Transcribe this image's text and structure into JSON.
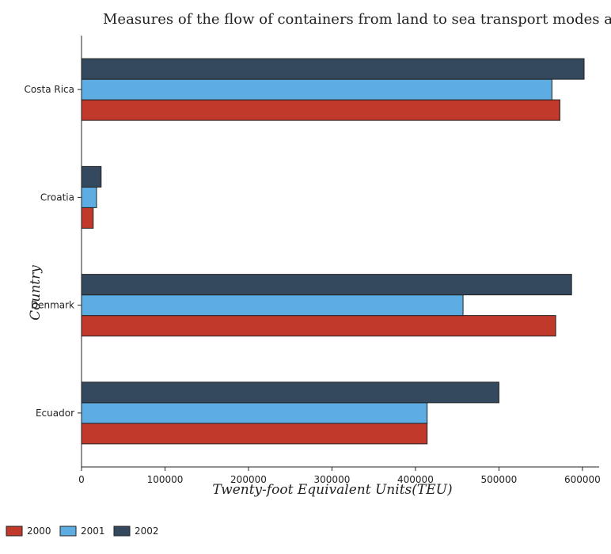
{
  "chart_data": {
    "type": "bar",
    "orientation": "horizontal",
    "title": "Measures of the flow of containers from land to sea transport modes and vice versa",
    "xlabel": "Twenty-foot Equivalent Units(TEU)",
    "ylabel": "Country",
    "categories": [
      "Costa Rica",
      "Croatia",
      "Denmark",
      "Ecuador"
    ],
    "series": [
      {
        "name": "2000",
        "color": "#c0392b",
        "values": [
          573000,
          14000,
          568000,
          414000
        ]
      },
      {
        "name": "2001",
        "color": "#5dade2",
        "values": [
          563500,
          18000,
          457000,
          414000
        ]
      },
      {
        "name": "2002",
        "color": "#34495e",
        "values": [
          602000,
          23500,
          587000,
          500000
        ]
      }
    ],
    "xlim": [
      0,
      620000
    ],
    "xticks": [
      0,
      100000,
      200000,
      300000,
      400000,
      500000,
      600000
    ],
    "xtick_labels": [
      "0",
      "100000",
      "200000",
      "300000",
      "400000",
      "500000",
      "600000"
    ],
    "grid": false,
    "legend_position": "bottom-left"
  }
}
